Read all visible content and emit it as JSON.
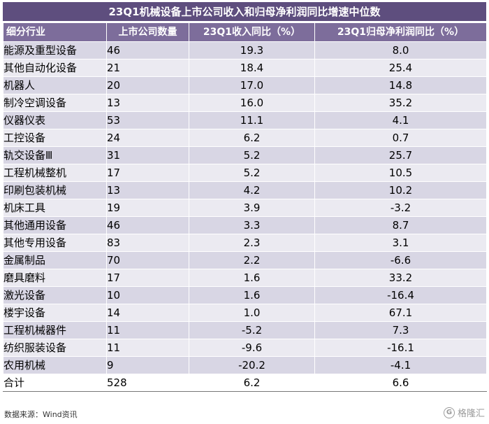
{
  "title": "23Q1机械设备上市公司收入和归母净利润同比增速中位数",
  "headers": [
    "细分行业",
    "上市公司数量",
    "23Q1收入同比（%）",
    "23Q1归母净利润同比（%）"
  ],
  "rows": [
    [
      "能源及重型设备",
      "46",
      "19.3",
      "8.0"
    ],
    [
      "其他自动化设备",
      "21",
      "18.4",
      "25.4"
    ],
    [
      "机器人",
      "20",
      "17.0",
      "14.8"
    ],
    [
      "制冷空调设备",
      "13",
      "16.0",
      "35.2"
    ],
    [
      "仪器仪表",
      "53",
      "11.1",
      "4.1"
    ],
    [
      "工控设备",
      "24",
      "6.2",
      "0.7"
    ],
    [
      "轨交设备Ⅲ",
      "31",
      "5.2",
      "25.7"
    ],
    [
      "工程机械整机",
      "17",
      "5.2",
      "10.5"
    ],
    [
      "印刷包装机械",
      "13",
      "4.2",
      "10.2"
    ],
    [
      "机床工具",
      "19",
      "3.9",
      "-3.2"
    ],
    [
      "其他通用设备",
      "46",
      "3.3",
      "8.7"
    ],
    [
      "其他专用设备",
      "83",
      "2.3",
      "3.1"
    ],
    [
      "金属制品",
      "70",
      "2.2",
      "-6.6"
    ],
    [
      "磨具磨料",
      "17",
      "1.6",
      "33.2"
    ],
    [
      "激光设备",
      "10",
      "1.6",
      "-16.4"
    ],
    [
      "楼宇设备",
      "14",
      "1.0",
      "67.1"
    ],
    [
      "工程机械器件",
      "11",
      "-5.2",
      "7.3"
    ],
    [
      "纺织服装设备",
      "11",
      "-9.6",
      "-16.1"
    ],
    [
      "农用机械",
      "9",
      "-20.2",
      "-4.1"
    ]
  ],
  "total": [
    "合计",
    "528",
    "6.2",
    "6.6"
  ],
  "source": "数据来源：Wind资讯",
  "watermark": {
    "icon": "G",
    "text": "格隆汇"
  }
}
